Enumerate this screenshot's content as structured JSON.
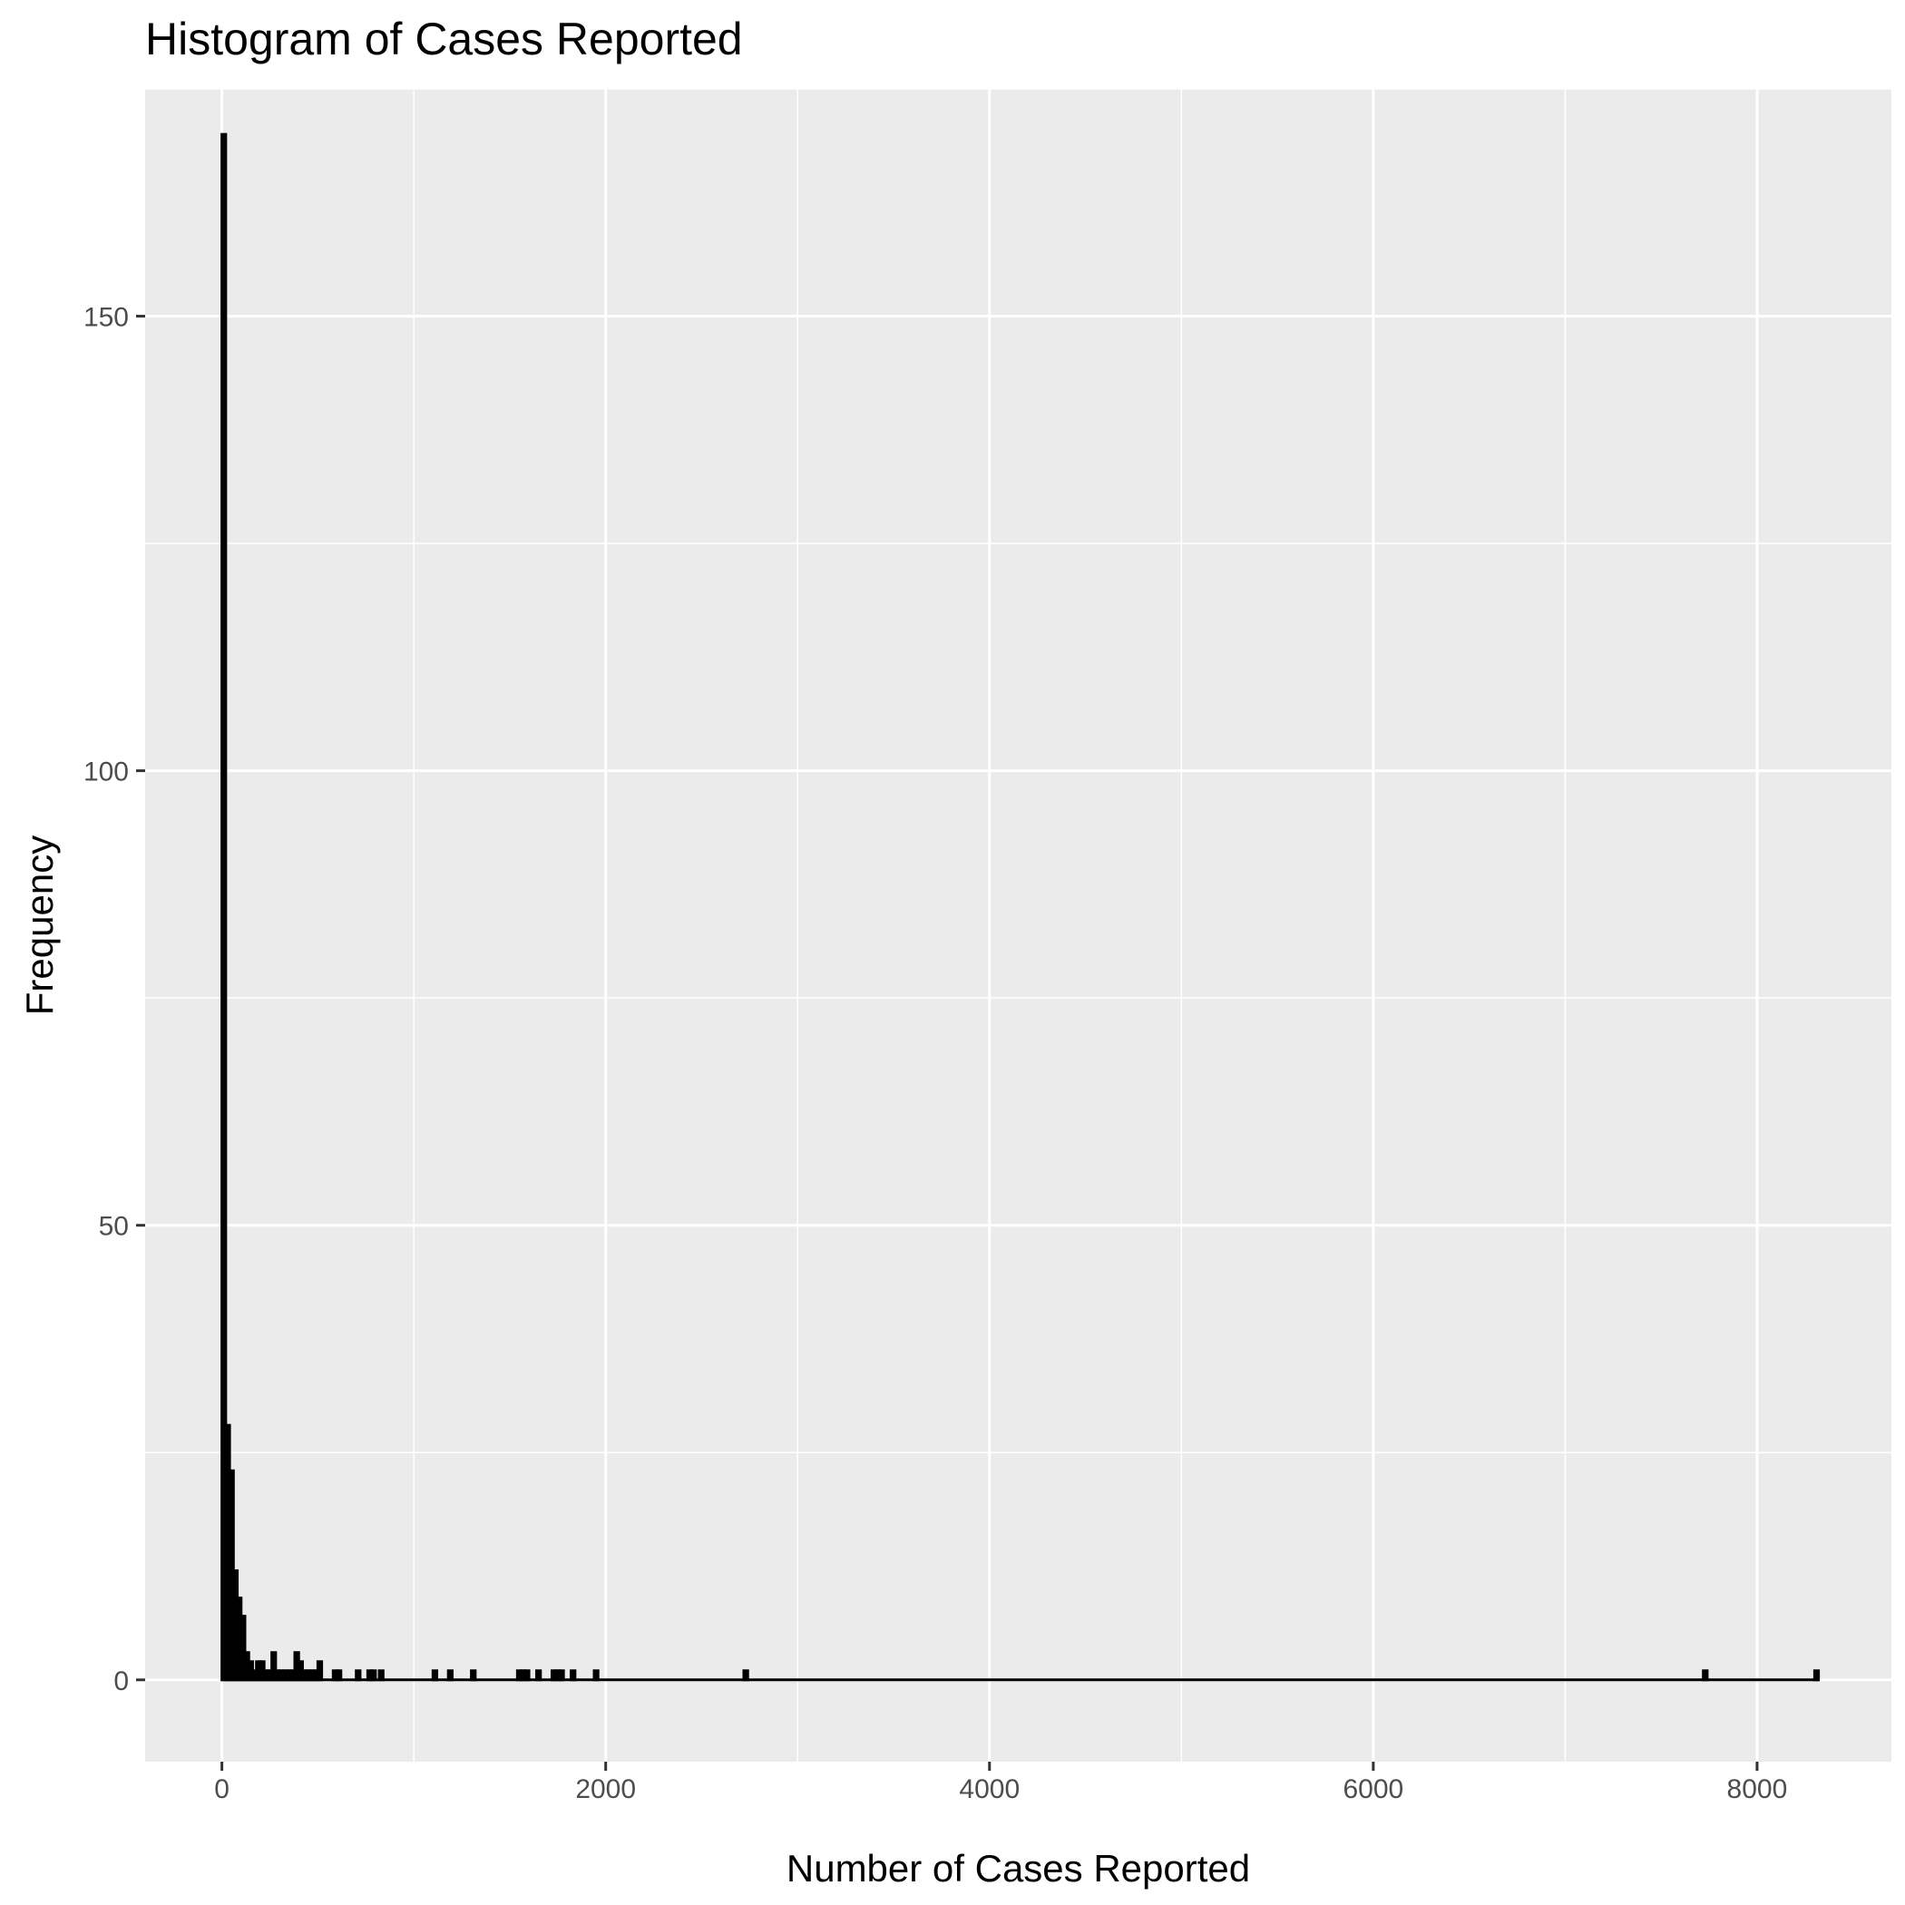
{
  "chart_data": {
    "type": "bar",
    "title": "Histogram of Cases Reported",
    "xlabel": "Number of Cases Reported",
    "ylabel": "Frequency",
    "xlim": [
      -400,
      8700
    ],
    "ylim": [
      -9,
      175
    ],
    "x_ticks": [
      0,
      2000,
      4000,
      6000,
      8000
    ],
    "x_tick_labels": [
      "0",
      "2000",
      "4000",
      "6000",
      "8000"
    ],
    "y_ticks": [
      0,
      50,
      100,
      150
    ],
    "y_tick_labels": [
      "0",
      "50",
      "100",
      "150"
    ],
    "grid": true,
    "bin_width": 20,
    "x": [
      0,
      20,
      40,
      60,
      80,
      100,
      120,
      140,
      160,
      180,
      200,
      220,
      240,
      260,
      280,
      300,
      320,
      340,
      360,
      380,
      400,
      420,
      440,
      460,
      480,
      500,
      580,
      600,
      700,
      760,
      780,
      820,
      1100,
      1180,
      1300,
      1540,
      1560,
      1580,
      1640,
      1720,
      1740,
      1760,
      1820,
      1940,
      2720,
      7720,
      8300
    ],
    "values": [
      170,
      28,
      23,
      12,
      9,
      7,
      3,
      2,
      1,
      2,
      2,
      1,
      1,
      3,
      1,
      1,
      1,
      1,
      1,
      3,
      2,
      1,
      1,
      1,
      1,
      2,
      1,
      1,
      1,
      1,
      1,
      1,
      1,
      1,
      1,
      1,
      1,
      1,
      1,
      1,
      1,
      1,
      1,
      1,
      1,
      1,
      1
    ],
    "colors": {
      "panel": "#ebebeb",
      "grid": "#ffffff",
      "bar": "#000000",
      "tick": "#333333",
      "tick_label": "#4d4d4d"
    }
  }
}
